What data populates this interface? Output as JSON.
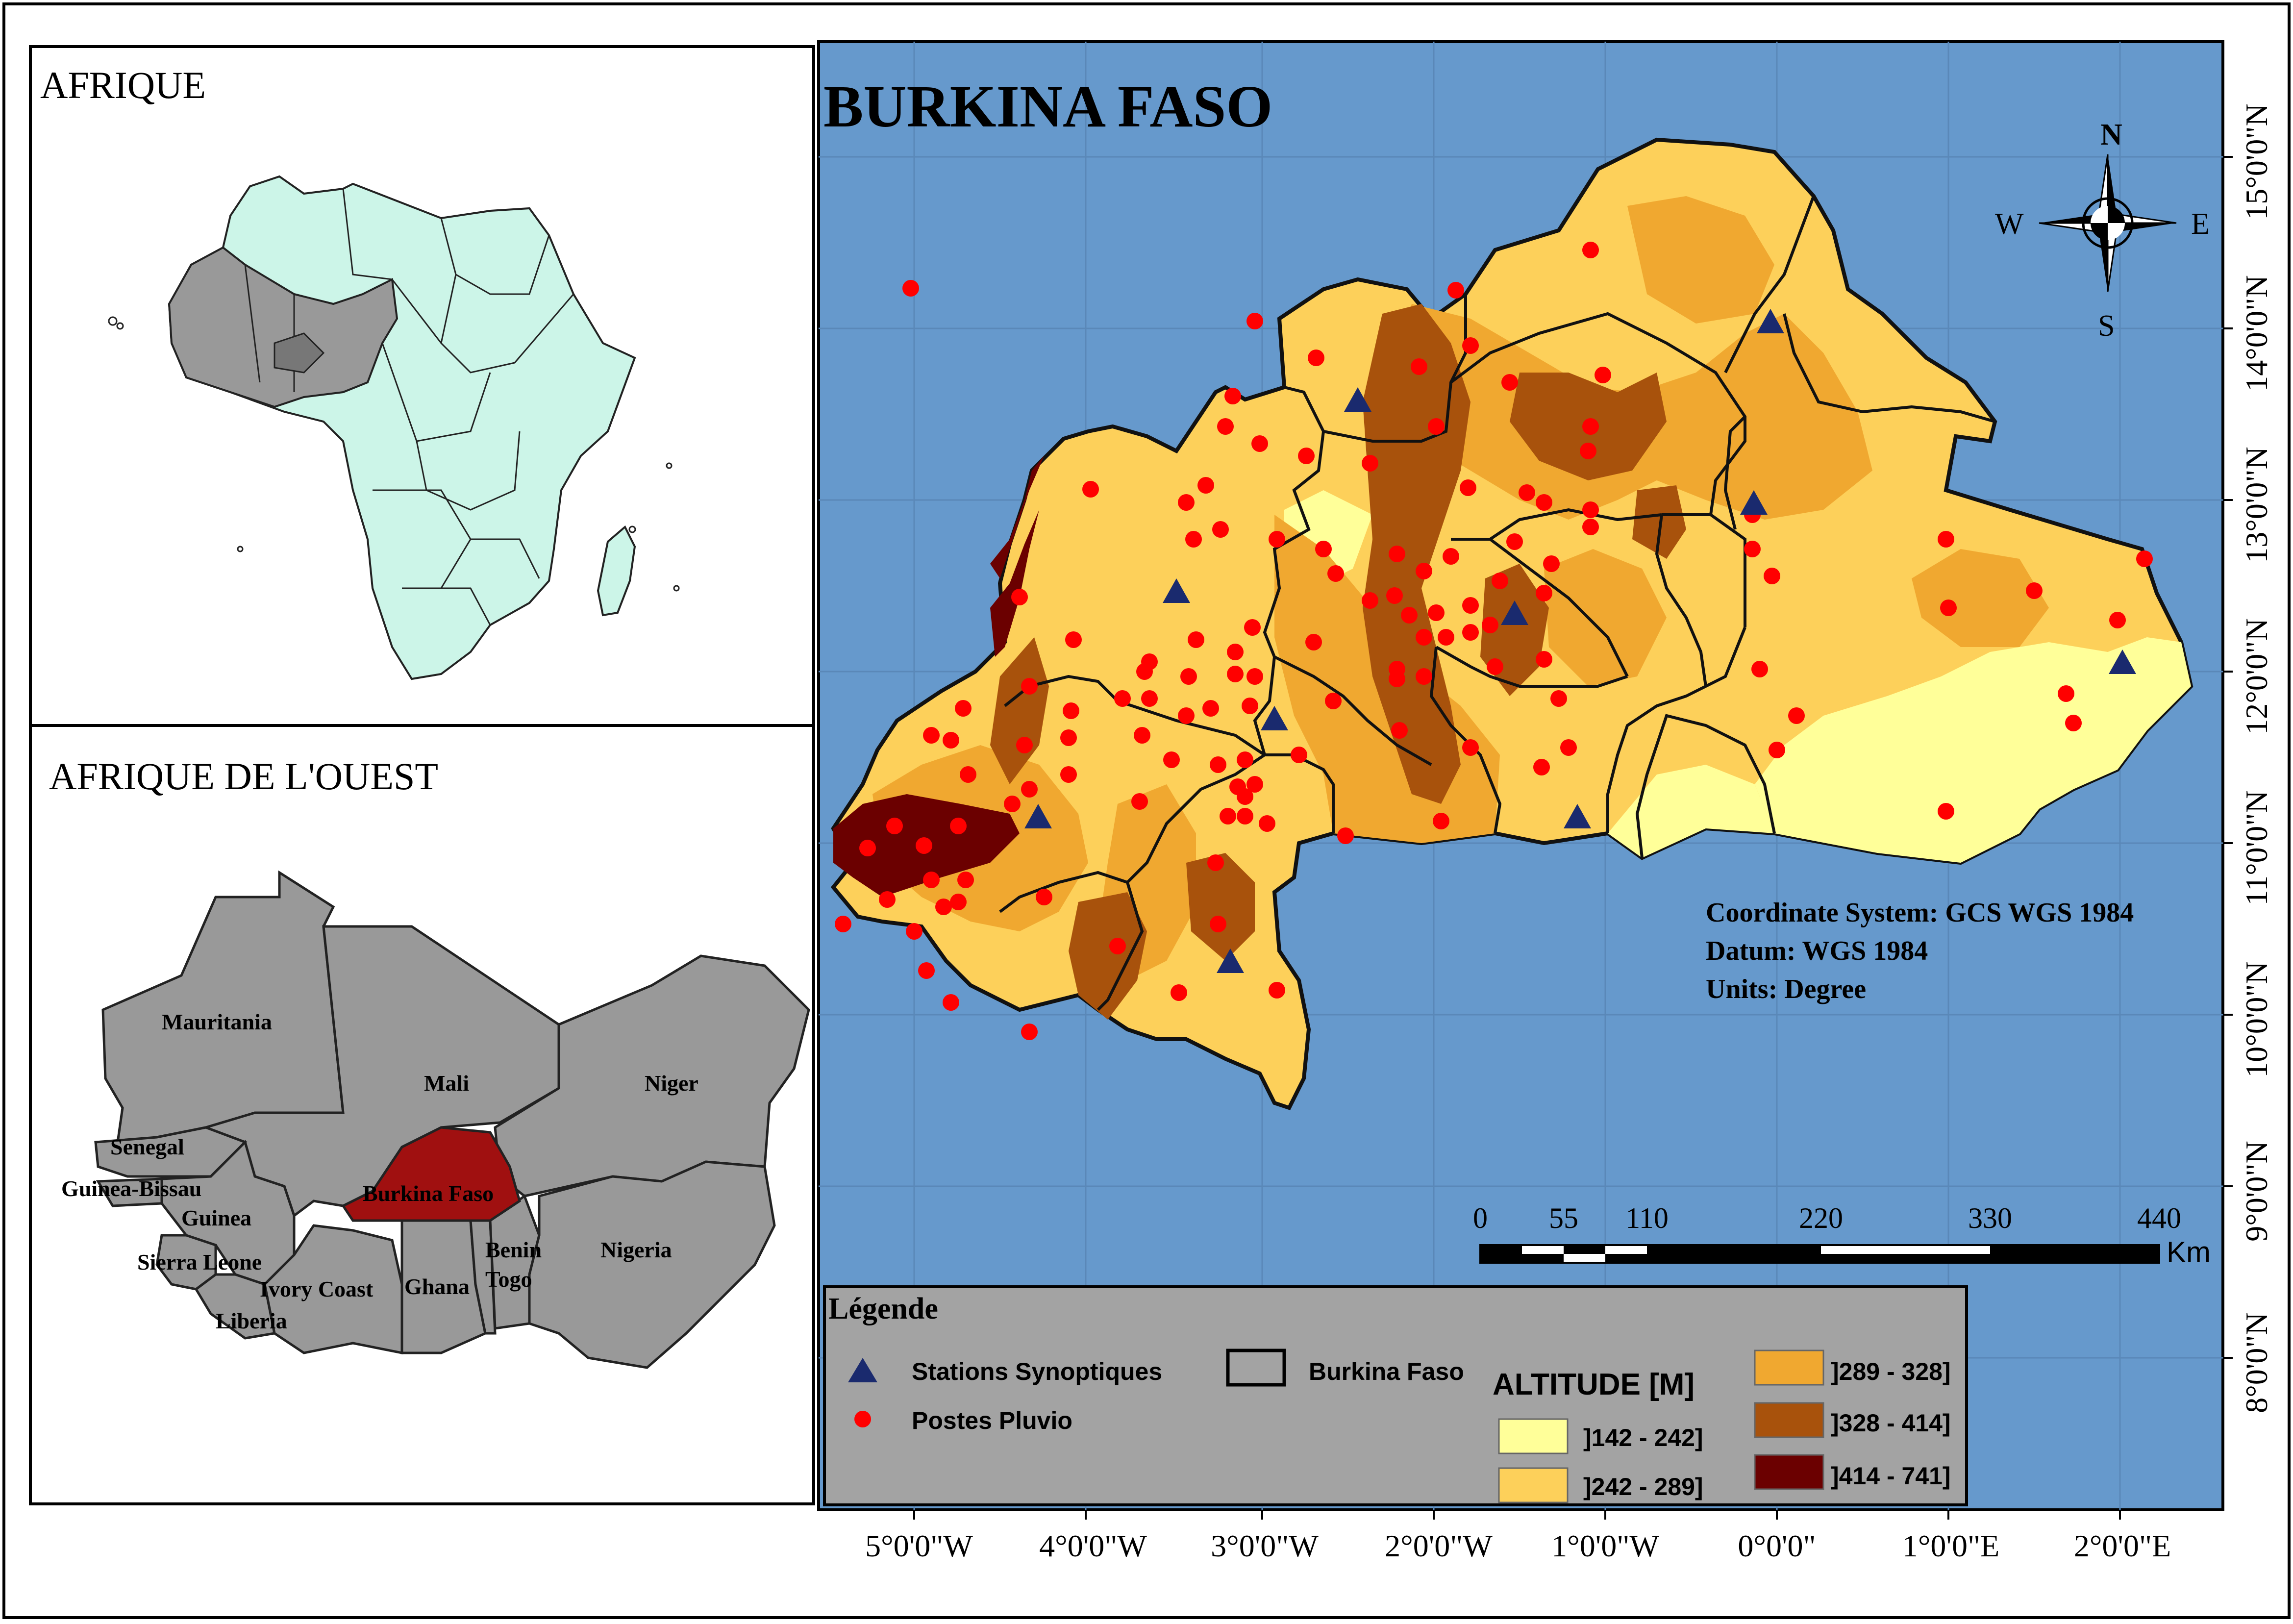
{
  "map_title": "BURKINA FASO",
  "inset_africa": {
    "title": "AFRIQUE"
  },
  "inset_west_africa": {
    "title": "AFRIQUE DE L'OUEST",
    "countries": [
      "Mauritania",
      "Mali",
      "Niger",
      "Senegal",
      "Guinea-Bissau",
      "Guinea",
      "Sierra Leone",
      "Liberia",
      "Ivory Coast",
      "Ghana",
      "Togo",
      "Benin",
      "Nigeria",
      "Burkina Faso"
    ]
  },
  "compass": {
    "n": "N",
    "s": "S",
    "e": "E",
    "w": "W"
  },
  "coordinate_info": {
    "line1": "Coordinate System: GCS WGS 1984",
    "line2": "Datum: WGS 1984",
    "line3": "Units: Degree"
  },
  "scale_bar": {
    "ticks": [
      "0",
      "55",
      "110",
      "220",
      "330",
      "440"
    ],
    "unit": "Km"
  },
  "axes": {
    "longitude_labels": [
      "5°0'0\"W",
      "4°0'0\"W",
      "3°0'0\"W",
      "2°0'0\"W",
      "1°0'0\"W",
      "0°0'0\"",
      "1°0'0\"E",
      "2°0'0\"E"
    ],
    "latitude_labels": [
      "15°0'0\"N",
      "14°0'0\"N",
      "13°0'0\"N",
      "12°0'0\"N",
      "11°0'0\"N",
      "10°0'0\"N",
      "9°0'0\"N",
      "8°0'0\"N"
    ]
  },
  "legend": {
    "title": "Légende",
    "stations": "Stations Synoptiques",
    "postes": "Postes Pluvio",
    "boundary": "Burkina Faso",
    "altitude_title": "ALTITUDE [M]",
    "classes": [
      {
        "label": "]142 - 242]",
        "color": "#ffff99"
      },
      {
        "label": "]242 - 289]",
        "color": "#fdd05a"
      },
      {
        "label": "]289 - 328]",
        "color": "#f0a830"
      },
      {
        "label": "]328 - 414]",
        "color": "#a8520c"
      },
      {
        "label": "]414 - 741]",
        "color": "#6b0000"
      }
    ]
  },
  "colors": {
    "ocean": "#6699cc",
    "africa_fill": "#ccf5e8",
    "highlight_grey": "#999999",
    "burkina_highlight": "#a01010",
    "station_marker": "#1a2a6e",
    "poste_marker": "#ff0000",
    "legend_bg": "#a3a3a3"
  }
}
